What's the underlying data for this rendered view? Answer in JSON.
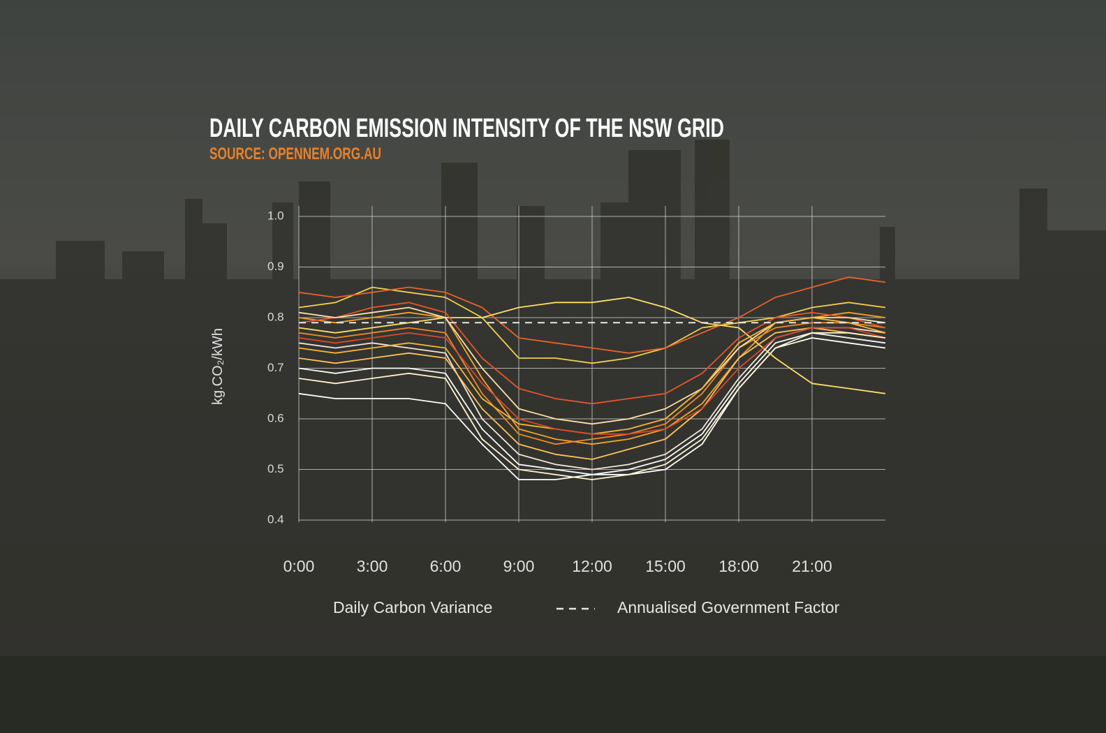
{
  "chart_data": {
    "type": "line",
    "title": "DAILY CARBON EMISSION INTENSITY OF THE NSW GRID",
    "subtitle": "SOURCE: OPENNEM.ORG.AU",
    "y_label": "kg.CO₂/kWh",
    "x": [
      0,
      1.5,
      3,
      4.5,
      6,
      7.5,
      9,
      10.5,
      12,
      13.5,
      15,
      16.5,
      18,
      19.5,
      21,
      22.5,
      24
    ],
    "xlim": [
      0,
      24
    ],
    "xticks": [
      {
        "value": 0,
        "label": "0:00"
      },
      {
        "value": 3,
        "label": "3:00"
      },
      {
        "value": 6,
        "label": "6:00"
      },
      {
        "value": 9,
        "label": "9:00"
      },
      {
        "value": 12,
        "label": "12:00"
      },
      {
        "value": 15,
        "label": "15:00"
      },
      {
        "value": 18,
        "label": "18:00"
      },
      {
        "value": 21,
        "label": "21:00"
      }
    ],
    "ylim": [
      0.4,
      1.0
    ],
    "yticks": [
      0.4,
      0.5,
      0.6,
      0.7,
      0.8,
      0.9,
      {
        "value": 1.0,
        "label": "1.0"
      }
    ],
    "grid": true,
    "legend_label": "Daily Carbon Variance",
    "series": [
      {
        "color": "#ffffff",
        "values": [
          0.65,
          0.64,
          0.64,
          0.64,
          0.63,
          0.55,
          0.48,
          0.48,
          0.49,
          0.49,
          0.5,
          0.55,
          0.66,
          0.74,
          0.76,
          0.75,
          0.74
        ]
      },
      {
        "color": "#f5a623",
        "values": [
          0.8,
          0.79,
          0.8,
          0.81,
          0.8,
          0.68,
          0.58,
          0.56,
          0.55,
          0.56,
          0.58,
          0.63,
          0.72,
          0.79,
          0.8,
          0.81,
          0.8
        ]
      },
      {
        "color": "#f2d04b",
        "values": [
          0.82,
          0.83,
          0.86,
          0.85,
          0.84,
          0.8,
          0.72,
          0.72,
          0.71,
          0.72,
          0.74,
          0.78,
          0.79,
          0.8,
          0.82,
          0.83,
          0.82
        ]
      },
      {
        "color": "#e8632a",
        "values": [
          0.85,
          0.84,
          0.85,
          0.86,
          0.85,
          0.82,
          0.76,
          0.75,
          0.74,
          0.73,
          0.74,
          0.77,
          0.8,
          0.84,
          0.86,
          0.88,
          0.87
        ]
      },
      {
        "color": "#ffe066",
        "values": [
          0.78,
          0.77,
          0.78,
          0.79,
          0.8,
          0.8,
          0.82,
          0.83,
          0.83,
          0.84,
          0.82,
          0.79,
          0.78,
          0.72,
          0.67,
          0.66,
          0.65
        ]
      },
      {
        "color": "#f2e6d8",
        "values": [
          0.75,
          0.74,
          0.75,
          0.74,
          0.73,
          0.6,
          0.53,
          0.51,
          0.5,
          0.51,
          0.53,
          0.58,
          0.68,
          0.76,
          0.78,
          0.78,
          0.77
        ]
      },
      {
        "color": "#f08a24",
        "values": [
          0.77,
          0.76,
          0.77,
          0.78,
          0.77,
          0.65,
          0.57,
          0.55,
          0.56,
          0.57,
          0.59,
          0.65,
          0.74,
          0.78,
          0.79,
          0.79,
          0.78
        ]
      },
      {
        "color": "#ffc35a",
        "values": [
          0.72,
          0.71,
          0.72,
          0.73,
          0.72,
          0.62,
          0.55,
          0.53,
          0.52,
          0.54,
          0.56,
          0.62,
          0.72,
          0.77,
          0.78,
          0.77,
          0.76
        ]
      },
      {
        "color": "#fafafa",
        "values": [
          0.7,
          0.69,
          0.7,
          0.7,
          0.69,
          0.58,
          0.51,
          0.5,
          0.49,
          0.5,
          0.52,
          0.57,
          0.67,
          0.75,
          0.77,
          0.76,
          0.75
        ]
      },
      {
        "color": "#e9552b",
        "values": [
          0.79,
          0.8,
          0.82,
          0.83,
          0.81,
          0.72,
          0.66,
          0.64,
          0.63,
          0.64,
          0.65,
          0.69,
          0.76,
          0.8,
          0.81,
          0.8,
          0.78
        ]
      },
      {
        "color": "#fbe0a8",
        "values": [
          0.81,
          0.8,
          0.81,
          0.82,
          0.8,
          0.7,
          0.62,
          0.6,
          0.59,
          0.6,
          0.62,
          0.66,
          0.74,
          0.79,
          0.8,
          0.8,
          0.79
        ]
      },
      {
        "color": "#f7b733",
        "values": [
          0.74,
          0.73,
          0.74,
          0.75,
          0.74,
          0.64,
          0.59,
          0.58,
          0.57,
          0.58,
          0.6,
          0.66,
          0.75,
          0.79,
          0.8,
          0.79,
          0.77
        ]
      },
      {
        "color": "#d9482b",
        "values": [
          0.76,
          0.75,
          0.76,
          0.77,
          0.76,
          0.67,
          0.6,
          0.58,
          0.57,
          0.57,
          0.58,
          0.62,
          0.7,
          0.76,
          0.78,
          0.78,
          0.76
        ]
      },
      {
        "color": "#fff3cc",
        "values": [
          0.68,
          0.67,
          0.68,
          0.69,
          0.68,
          0.56,
          0.5,
          0.49,
          0.48,
          0.49,
          0.51,
          0.56,
          0.66,
          0.74,
          0.77,
          0.77,
          0.76
        ]
      }
    ],
    "reference": {
      "name": "Annualised Government Factor",
      "value": 0.79,
      "color": "#e6e6e6"
    }
  }
}
